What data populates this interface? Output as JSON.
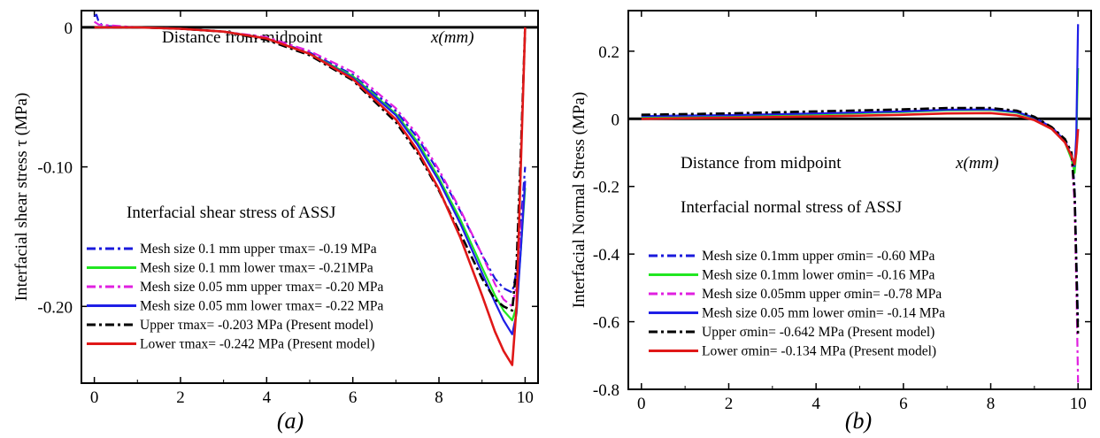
{
  "chart_data": [
    {
      "type": "line",
      "panel": "(a)",
      "ylabel": "Interfacial shear stress  τ (MPa)",
      "annotation_axis": "Distance from midpoint",
      "annotation_axis_unit": "x(mm)",
      "annotation_title": "Interfacial shear stress of ASSJ",
      "xlim": [
        -0.3,
        10.3
      ],
      "ylim": [
        -0.255,
        0.012
      ],
      "xticks": [
        "0",
        "2",
        "4",
        "6",
        "8",
        "10"
      ],
      "yticks": [
        {
          "value": 0,
          "label": "0"
        },
        {
          "value": -0.1,
          "label": "-0.10"
        },
        {
          "value": -0.2,
          "label": "-0.20"
        }
      ],
      "series": [
        {
          "name": "Mesh size 0.1 mm upper τmax= -0.19 MPa",
          "color": "#1a1adc",
          "dash": "dashdot",
          "x": [
            0,
            0.05,
            0.1,
            0.2,
            1,
            2,
            3,
            4,
            5,
            6,
            7,
            7.5,
            8,
            8.5,
            9,
            9.3,
            9.5,
            9.7,
            9.8,
            9.9,
            10
          ],
          "y": [
            0.008,
            0.009,
            0.004,
            0.001,
            0,
            -0.001,
            -0.003,
            -0.008,
            -0.018,
            -0.034,
            -0.06,
            -0.079,
            -0.104,
            -0.132,
            -0.163,
            -0.18,
            -0.187,
            -0.19,
            -0.175,
            -0.14,
            -0.1
          ]
        },
        {
          "name": "Mesh size 0.1 mm lower τmax= -0.21MPa",
          "color": "#22e622",
          "dash": "solid",
          "x": [
            0,
            0.1,
            1,
            2,
            3,
            4,
            5,
            6,
            7,
            7.5,
            8,
            8.5,
            9,
            9.3,
            9.5,
            9.7,
            9.8,
            9.9,
            10
          ],
          "y": [
            0,
            0,
            0,
            -0.001,
            -0.003,
            -0.008,
            -0.019,
            -0.035,
            -0.062,
            -0.082,
            -0.108,
            -0.138,
            -0.172,
            -0.192,
            -0.203,
            -0.21,
            -0.2,
            -0.16,
            -0.115
          ]
        },
        {
          "name": "Mesh size 0.05 mm upper τmax= -0.20 MPa",
          "color": "#e020e0",
          "dash": "dashdot",
          "x": [
            0,
            0.1,
            1,
            2,
            3,
            4,
            5,
            6,
            7,
            7.5,
            8,
            8.5,
            9,
            9.3,
            9.5,
            9.7,
            9.8,
            9.9,
            10
          ],
          "y": [
            0.004,
            0.002,
            0,
            -0.001,
            -0.003,
            -0.007,
            -0.017,
            -0.032,
            -0.058,
            -0.077,
            -0.102,
            -0.131,
            -0.163,
            -0.184,
            -0.195,
            -0.2,
            -0.185,
            -0.15,
            -0.11
          ]
        },
        {
          "name": "Mesh size 0.05 mm  lower τmax= -0.22 MPa",
          "color": "#1f1fe6",
          "dash": "solid",
          "x": [
            0,
            0.1,
            1,
            2,
            3,
            4,
            5,
            6,
            7,
            7.5,
            8,
            8.5,
            9,
            9.3,
            9.5,
            9.7,
            9.8,
            9.9,
            10
          ],
          "y": [
            0,
            0,
            0,
            -0.001,
            -0.003,
            -0.008,
            -0.019,
            -0.036,
            -0.063,
            -0.084,
            -0.11,
            -0.141,
            -0.176,
            -0.197,
            -0.21,
            -0.22,
            -0.205,
            -0.16,
            -0.11
          ]
        },
        {
          "name": "Upper τmax= -0.203 MPa (Present model)",
          "color": "#000000",
          "dash": "dashdot",
          "x": [
            0,
            1,
            2,
            3,
            4,
            5,
            6,
            7,
            7.5,
            8,
            8.5,
            9,
            9.3,
            9.5,
            9.7,
            9.8,
            9.9,
            10
          ],
          "y": [
            0,
            0,
            -0.001,
            -0.003,
            -0.009,
            -0.02,
            -0.038,
            -0.068,
            -0.09,
            -0.117,
            -0.148,
            -0.18,
            -0.195,
            -0.2,
            -0.203,
            -0.17,
            -0.09,
            0
          ]
        },
        {
          "name": "Lower τmax= -0.242 MPa (Present model)",
          "color": "#e01818",
          "dash": "solid",
          "x": [
            0,
            1,
            2,
            3,
            4,
            5,
            6,
            7,
            7.5,
            8,
            8.5,
            9,
            9.3,
            9.5,
            9.7,
            9.8,
            9.9,
            10
          ],
          "y": [
            0,
            0,
            -0.001,
            -0.003,
            -0.008,
            -0.019,
            -0.037,
            -0.066,
            -0.088,
            -0.116,
            -0.151,
            -0.192,
            -0.218,
            -0.232,
            -0.242,
            -0.2,
            -0.1,
            0
          ]
        }
      ]
    },
    {
      "type": "line",
      "panel": "(b)",
      "ylabel": "Interfacial Normal Stress  (MPa)",
      "annotation_axis": "Distance from midpoint",
      "annotation_axis_unit": "x(mm)",
      "annotation_title": "Interfacial normal stress of ASSJ",
      "xlim": [
        -0.3,
        10.3
      ],
      "ylim": [
        -0.8,
        0.32
      ],
      "xticks": [
        "0",
        "2",
        "4",
        "6",
        "8",
        "10"
      ],
      "yticks": [
        {
          "value": 0.2,
          "label": "0.2"
        },
        {
          "value": 0,
          "label": "0"
        },
        {
          "value": -0.2,
          "label": "-0.2"
        },
        {
          "value": -0.4,
          "label": "-0.4"
        },
        {
          "value": -0.6,
          "label": "-0.6"
        },
        {
          "value": -0.8,
          "label": "-0.8"
        }
      ],
      "series": [
        {
          "name": "Mesh size 0.1mm upper σmin= -0.60 MPa",
          "color": "#1a1adc",
          "dash": "dashdot",
          "x": [
            0,
            2,
            4,
            6,
            7,
            8,
            8.6,
            9,
            9.4,
            9.7,
            9.85,
            9.92,
            9.97,
            10
          ],
          "y": [
            0.01,
            0.012,
            0.016,
            0.022,
            0.027,
            0.028,
            0.02,
            0.005,
            -0.025,
            -0.06,
            -0.1,
            -0.2,
            -0.45,
            -0.6
          ]
        },
        {
          "name": "Mesh size 0.1mm lower σmin= -0.16 MPa",
          "color": "#22e622",
          "dash": "solid",
          "x": [
            0,
            2,
            4,
            6,
            7,
            8,
            8.6,
            9,
            9.4,
            9.7,
            9.85,
            9.92,
            9.96,
            9.98,
            10
          ],
          "y": [
            0.005,
            0.008,
            0.013,
            0.02,
            0.025,
            0.026,
            0.018,
            0.002,
            -0.03,
            -0.07,
            -0.12,
            -0.16,
            -0.1,
            0.05,
            0.15
          ]
        },
        {
          "name": "Mesh size 0.05mm upper σmin= -0.78 MPa",
          "color": "#e020e0",
          "dash": "dashdot",
          "x": [
            0,
            2,
            4,
            6,
            7,
            8,
            8.6,
            9,
            9.4,
            9.7,
            9.85,
            9.92,
            9.97,
            10
          ],
          "y": [
            0.01,
            0.013,
            0.018,
            0.024,
            0.029,
            0.03,
            0.022,
            0.006,
            -0.025,
            -0.065,
            -0.11,
            -0.25,
            -0.55,
            -0.78
          ]
        },
        {
          "name": "Mesh size 0.05 mm lower σmin= -0.14 MPa",
          "color": "#1f1fe6",
          "dash": "solid",
          "x": [
            0,
            2,
            4,
            6,
            7,
            8,
            8.6,
            9,
            9.4,
            9.7,
            9.85,
            9.92,
            9.96,
            9.98,
            10
          ],
          "y": [
            0.008,
            0.011,
            0.016,
            0.022,
            0.027,
            0.028,
            0.02,
            0.003,
            -0.025,
            -0.065,
            -0.11,
            -0.14,
            -0.05,
            0.12,
            0.28
          ]
        },
        {
          "name": "Upper σmin= -0.642 MPa (Present model)",
          "color": "#000000",
          "dash": "dashdot",
          "x": [
            0,
            2,
            4,
            6,
            7,
            8,
            8.6,
            9,
            9.4,
            9.7,
            9.85,
            9.92,
            9.97,
            10
          ],
          "y": [
            0.012,
            0.016,
            0.022,
            0.028,
            0.032,
            0.032,
            0.024,
            0.006,
            -0.025,
            -0.06,
            -0.1,
            -0.22,
            -0.48,
            -0.642
          ]
        },
        {
          "name": "Lower σmin= -0.134 MPa (Present model)",
          "color": "#e01818",
          "dash": "solid",
          "x": [
            0,
            2,
            4,
            6,
            7,
            8,
            8.6,
            9,
            9.4,
            9.7,
            9.85,
            9.92,
            9.96,
            10
          ],
          "y": [
            0.0,
            0.003,
            0.007,
            0.012,
            0.016,
            0.017,
            0.01,
            -0.004,
            -0.03,
            -0.07,
            -0.11,
            -0.134,
            -0.1,
            -0.03
          ]
        }
      ]
    }
  ]
}
